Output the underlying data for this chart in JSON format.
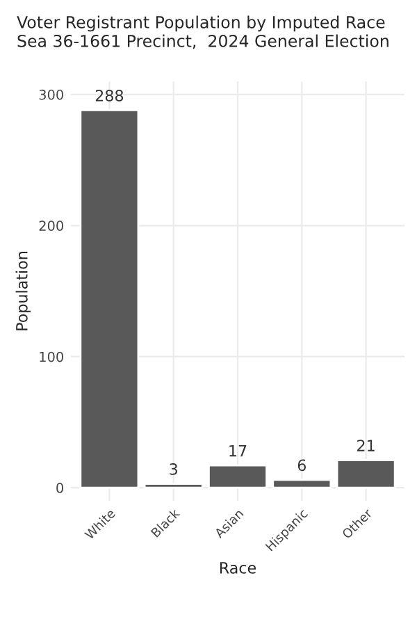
{
  "chart_data": {
    "type": "bar",
    "title": "Voter Registrant Population by Imputed Race",
    "subtitle": "Sea 36-1661 Precinct,  2024 General Election",
    "xlabel": "Race",
    "ylabel": "Population",
    "categories": [
      "White",
      "Black",
      "Asian",
      "Hispanic",
      "Other"
    ],
    "values": [
      288,
      3,
      17,
      6,
      21
    ],
    "color": "#595959",
    "ylim": [
      -10,
      310
    ],
    "yticks": [
      0,
      100,
      200,
      300
    ],
    "grid": true,
    "data_labels": true
  }
}
